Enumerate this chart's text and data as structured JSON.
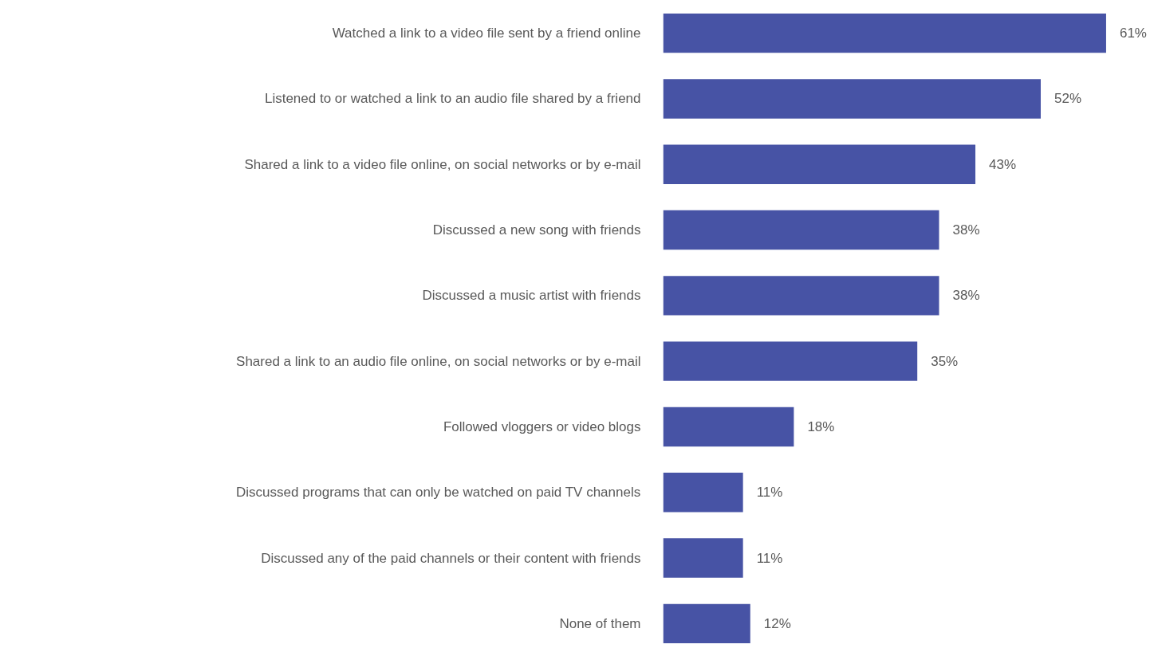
{
  "chart_data": {
    "type": "bar",
    "orientation": "horizontal",
    "tick_labels": "y",
    "categories": [
      "Watched a link to a video file sent by a friend online",
      "Listened to or watched a link to an audio file shared by a friend",
      "Shared a link to a video file online, on social networks or by e-mail",
      "Discussed a new song with friends",
      "Discussed a music artist with friends",
      "Shared a link to an audio file online, on social networks or by e-mail",
      "Followed vloggers or video blogs",
      "Discussed programs that can only be watched on paid TV channels",
      "Discussed any of the paid channels or their content with friends",
      "None of them"
    ],
    "values": [
      61,
      52,
      43,
      38,
      38,
      35,
      18,
      11,
      11,
      12
    ],
    "value_labels": [
      "61%",
      "52%",
      "43%",
      "38%",
      "38%",
      "35%",
      "18%",
      "11%",
      "11%",
      "12%"
    ],
    "color": "#4753a5"
  }
}
